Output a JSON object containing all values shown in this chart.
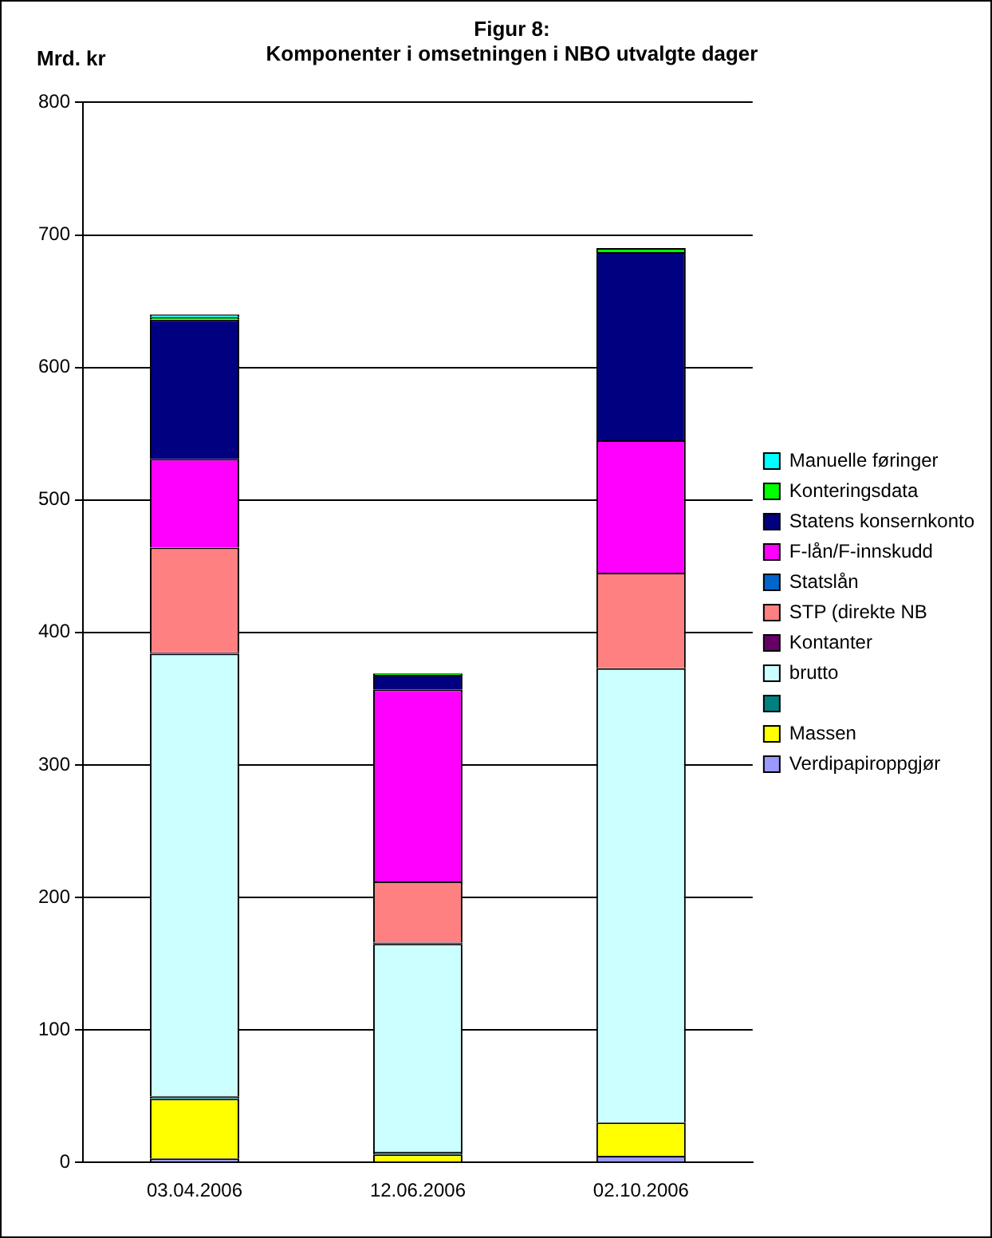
{
  "chart_data": {
    "type": "bar",
    "title": "Figur 8:",
    "subtitle": "Komponenter i omsetningen i NBO utvalgte dager",
    "ylabel": "Mrd. kr",
    "categories": [
      "03.04.2006",
      "12.06.2006",
      "02.10.2006"
    ],
    "stacked": true,
    "ylim": [
      0,
      800
    ],
    "yticks": [
      0,
      100,
      200,
      300,
      400,
      500,
      600,
      700,
      800
    ],
    "grid": "y",
    "legend": "right",
    "series": [
      {
        "name": "Verdipapiroppgjør",
        "color": "#9999ff",
        "values": [
          3,
          null,
          5
        ]
      },
      {
        "name": "Massen",
        "color": "#ffff00",
        "values": [
          45,
          6,
          25
        ]
      },
      {
        "color": "#008080",
        "values": [
          2,
          2,
          0
        ]
      },
      {
        "name": "brutto",
        "color": "#ccffff",
        "values": [
          334,
          157,
          343
        ]
      },
      {
        "name": "Kontanter",
        "color": "#660066",
        "values": [
          1,
          1,
          0
        ]
      },
      {
        "name": "STP (direkte NB",
        "color": "#ff8080",
        "values": [
          79,
          46,
          72
        ]
      },
      {
        "name": "Statslån",
        "color": "#0066cc",
        "values": [
          0,
          0,
          0
        ]
      },
      {
        "name": "F-lån/F-innskudd",
        "color": "#ff00ff",
        "values": [
          67,
          145,
          100
        ]
      },
      {
        "name": "Statens konsernkonto",
        "color": "#000080",
        "values": [
          105,
          11,
          142
        ]
      },
      {
        "name": "Konteringsdata",
        "color": "#00ff00",
        "values": [
          2,
          1,
          3
        ]
      },
      {
        "name": "Manuelle føringer",
        "color": "#00ffff",
        "values": [
          2,
          0,
          0
        ]
      }
    ]
  }
}
